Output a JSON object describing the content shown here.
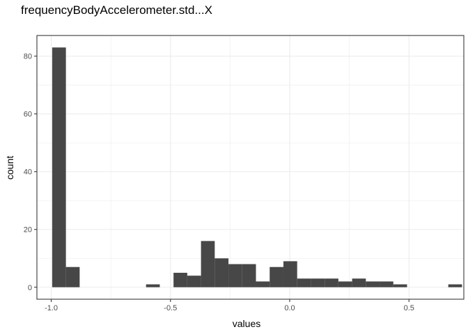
{
  "chart_data": {
    "type": "bar",
    "title": "frequencyBodyAccelerometer.std...X",
    "xlabel": "values",
    "ylabel": "count",
    "xlim": [
      -1.06,
      0.73
    ],
    "ylim": [
      -4.15,
      87.15
    ],
    "x_ticks": [
      -1.0,
      -0.5,
      0.0,
      0.5
    ],
    "x_tick_labels": [
      "-1.0",
      "-0.5",
      "0.0",
      "0.5"
    ],
    "y_ticks": [
      0,
      20,
      40,
      60,
      80
    ],
    "y_tick_labels": [
      "0",
      "20",
      "40",
      "60",
      "80"
    ],
    "grid": true,
    "bin_width": 0.0576,
    "bins": [
      {
        "x0": -0.996,
        "x1": -0.9384,
        "count": 83
      },
      {
        "x0": -0.9384,
        "x1": -0.8808,
        "count": 7
      },
      {
        "x0": -0.6024,
        "x1": -0.5448,
        "count": 1
      },
      {
        "x0": -0.4872,
        "x1": -0.4296,
        "count": 5
      },
      {
        "x0": -0.4296,
        "x1": -0.372,
        "count": 4
      },
      {
        "x0": -0.372,
        "x1": -0.3144,
        "count": 16
      },
      {
        "x0": -0.3144,
        "x1": -0.2568,
        "count": 10
      },
      {
        "x0": -0.2568,
        "x1": -0.1992,
        "count": 8
      },
      {
        "x0": -0.1992,
        "x1": -0.1416,
        "count": 8
      },
      {
        "x0": -0.1416,
        "x1": -0.084,
        "count": 2
      },
      {
        "x0": -0.084,
        "x1": -0.0264,
        "count": 7
      },
      {
        "x0": -0.0264,
        "x1": 0.0312,
        "count": 9
      },
      {
        "x0": 0.0312,
        "x1": 0.0888,
        "count": 3
      },
      {
        "x0": 0.0888,
        "x1": 0.1464,
        "count": 3
      },
      {
        "x0": 0.1464,
        "x1": 0.204,
        "count": 3
      },
      {
        "x0": 0.204,
        "x1": 0.2616,
        "count": 2
      },
      {
        "x0": 0.2616,
        "x1": 0.3192,
        "count": 3
      },
      {
        "x0": 0.3192,
        "x1": 0.3768,
        "count": 2
      },
      {
        "x0": 0.3768,
        "x1": 0.4344,
        "count": 2
      },
      {
        "x0": 0.4344,
        "x1": 0.492,
        "count": 1
      },
      {
        "x0": 0.6648,
        "x1": 0.7224,
        "count": 1
      }
    ],
    "colors": {
      "bar": "#474747",
      "grid": "#ebebeb",
      "panel_border": "#333333",
      "tick_text": "#4d4d4d"
    }
  }
}
